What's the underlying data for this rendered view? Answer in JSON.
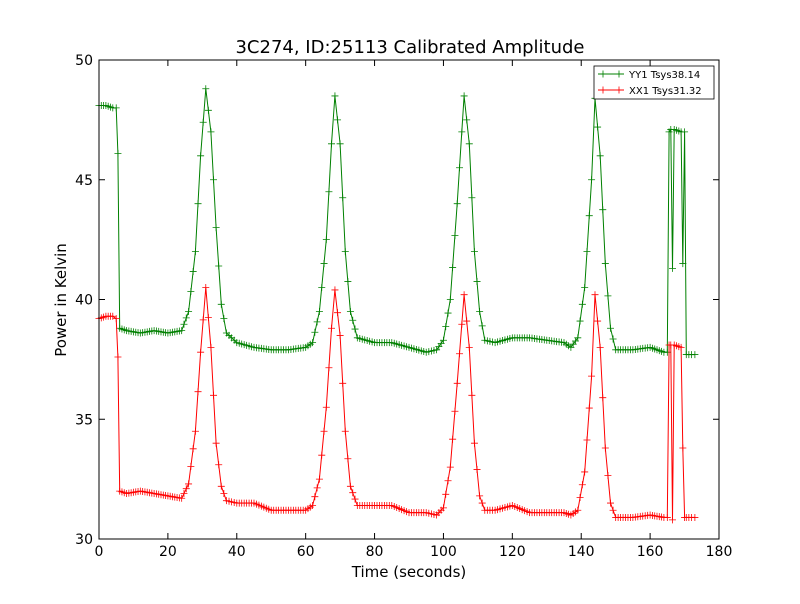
{
  "chart_data": {
    "type": "line",
    "title": "3C274, ID:25113 Calibrated Amplitude",
    "xlabel": "Time (seconds)",
    "ylabel": "Power in Kelvin",
    "xlim": [
      0,
      180
    ],
    "ylim": [
      30,
      50
    ],
    "xticks": [
      0,
      20,
      40,
      60,
      80,
      100,
      120,
      140,
      160,
      180
    ],
    "yticks": [
      30,
      35,
      40,
      45,
      50
    ],
    "grid": false,
    "legend_position": "top-right",
    "marker": "+",
    "series": [
      {
        "name": "YY1 Tsys38.14",
        "color": "#008000",
        "points": [
          [
            0,
            48.1
          ],
          [
            2,
            48.1
          ],
          [
            4,
            48.0
          ],
          [
            5,
            48.0
          ],
          [
            5.5,
            46.1
          ],
          [
            6,
            38.8
          ],
          [
            8,
            38.7
          ],
          [
            12,
            38.6
          ],
          [
            16,
            38.7
          ],
          [
            20,
            38.6
          ],
          [
            24,
            38.7
          ],
          [
            26,
            39.5
          ],
          [
            28,
            42.0
          ],
          [
            29.5,
            46.0
          ],
          [
            31,
            48.8
          ],
          [
            32.5,
            47.0
          ],
          [
            34,
            43.0
          ],
          [
            35.5,
            39.8
          ],
          [
            37,
            38.6
          ],
          [
            40,
            38.2
          ],
          [
            45,
            38.0
          ],
          [
            50,
            37.9
          ],
          [
            55,
            37.9
          ],
          [
            60,
            38.0
          ],
          [
            62,
            38.2
          ],
          [
            64,
            39.5
          ],
          [
            66,
            42.5
          ],
          [
            67.5,
            46.5
          ],
          [
            68.5,
            48.5
          ],
          [
            70,
            46.5
          ],
          [
            71.5,
            42.0
          ],
          [
            73,
            39.5
          ],
          [
            75,
            38.4
          ],
          [
            80,
            38.2
          ],
          [
            85,
            38.2
          ],
          [
            90,
            38.0
          ],
          [
            95,
            37.8
          ],
          [
            98,
            37.9
          ],
          [
            100,
            38.3
          ],
          [
            102,
            40.0
          ],
          [
            104,
            44.0
          ],
          [
            106,
            48.5
          ],
          [
            107.5,
            46.5
          ],
          [
            109,
            42.0
          ],
          [
            110.5,
            39.5
          ],
          [
            112,
            38.3
          ],
          [
            115,
            38.2
          ],
          [
            120,
            38.4
          ],
          [
            125,
            38.4
          ],
          [
            130,
            38.3
          ],
          [
            135,
            38.2
          ],
          [
            137,
            38.0
          ],
          [
            139,
            38.4
          ],
          [
            141,
            40.5
          ],
          [
            143,
            45.0
          ],
          [
            144,
            48.4
          ],
          [
            145.5,
            46.0
          ],
          [
            147,
            41.5
          ],
          [
            148.5,
            38.8
          ],
          [
            150,
            37.9
          ],
          [
            155,
            37.9
          ],
          [
            160,
            38.0
          ],
          [
            164,
            37.8
          ],
          [
            165,
            37.8
          ],
          [
            165.5,
            47.0
          ],
          [
            166,
            47.1
          ],
          [
            166.5,
            41.3
          ],
          [
            167,
            47.1
          ],
          [
            169,
            47.0
          ],
          [
            169.5,
            41.5
          ],
          [
            170,
            47.0
          ],
          [
            170.5,
            37.7
          ],
          [
            172,
            37.7
          ],
          [
            173,
            37.7
          ]
        ]
      },
      {
        "name": "XX1 Tsys31.32",
        "color": "#ff0000",
        "points": [
          [
            0,
            39.2
          ],
          [
            2,
            39.3
          ],
          [
            4,
            39.3
          ],
          [
            5,
            39.2
          ],
          [
            5.5,
            37.6
          ],
          [
            6,
            32.0
          ],
          [
            8,
            31.9
          ],
          [
            12,
            32.0
          ],
          [
            16,
            31.9
          ],
          [
            20,
            31.8
          ],
          [
            24,
            31.7
          ],
          [
            26,
            32.3
          ],
          [
            28,
            34.5
          ],
          [
            29.5,
            37.8
          ],
          [
            31,
            40.5
          ],
          [
            32.5,
            38.0
          ],
          [
            34,
            34.0
          ],
          [
            35.5,
            32.2
          ],
          [
            37,
            31.6
          ],
          [
            40,
            31.5
          ],
          [
            45,
            31.5
          ],
          [
            50,
            31.2
          ],
          [
            55,
            31.2
          ],
          [
            60,
            31.2
          ],
          [
            62,
            31.4
          ],
          [
            64,
            32.5
          ],
          [
            66,
            35.5
          ],
          [
            67.5,
            38.8
          ],
          [
            68.5,
            40.4
          ],
          [
            70,
            38.5
          ],
          [
            71.5,
            34.5
          ],
          [
            73,
            32.2
          ],
          [
            75,
            31.4
          ],
          [
            80,
            31.4
          ],
          [
            85,
            31.4
          ],
          [
            90,
            31.1
          ],
          [
            95,
            31.1
          ],
          [
            98,
            31.0
          ],
          [
            100,
            31.3
          ],
          [
            102,
            33.0
          ],
          [
            104,
            36.5
          ],
          [
            106,
            40.2
          ],
          [
            107.5,
            38.0
          ],
          [
            109,
            34.0
          ],
          [
            110.5,
            31.8
          ],
          [
            112,
            31.2
          ],
          [
            115,
            31.2
          ],
          [
            120,
            31.4
          ],
          [
            125,
            31.1
          ],
          [
            130,
            31.1
          ],
          [
            135,
            31.1
          ],
          [
            137,
            31.0
          ],
          [
            139,
            31.2
          ],
          [
            141,
            32.8
          ],
          [
            143,
            36.8
          ],
          [
            144,
            40.2
          ],
          [
            145.5,
            38.0
          ],
          [
            147,
            33.8
          ],
          [
            148.5,
            31.5
          ],
          [
            150,
            30.9
          ],
          [
            155,
            30.9
          ],
          [
            160,
            31.0
          ],
          [
            164,
            30.9
          ],
          [
            165,
            30.9
          ],
          [
            165.5,
            38.1
          ],
          [
            166,
            38.1
          ],
          [
            166.5,
            30.8
          ],
          [
            167,
            38.1
          ],
          [
            169,
            38.0
          ],
          [
            169.5,
            33.8
          ],
          [
            170,
            30.9
          ],
          [
            170.5,
            30.9
          ],
          [
            172,
            30.9
          ],
          [
            173,
            30.9
          ]
        ]
      }
    ]
  }
}
